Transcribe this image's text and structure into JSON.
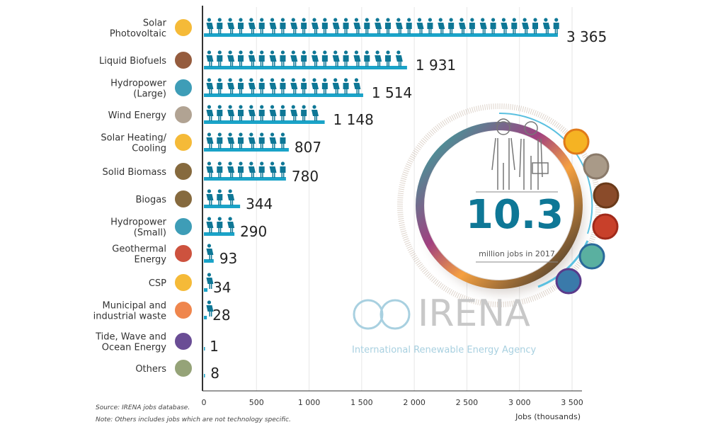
{
  "chart_data": {
    "type": "bar",
    "orientation": "horizontal",
    "xlabel": "Jobs (thousands)",
    "xlim": [
      0,
      3500
    ],
    "xticks": [
      "0",
      "500",
      "1 000",
      "1 500",
      "2 000",
      "2 500",
      "3 000",
      "3 500"
    ],
    "grid": true,
    "categories": [
      {
        "label": [
          "Solar",
          "Photovoltaic"
        ],
        "value": 3365,
        "value_label": "3 365",
        "icon": "sun-icon",
        "color": "#f5b323"
      },
      {
        "label": [
          "Liquid Biofuels"
        ],
        "value": 1931,
        "value_label": "1 931",
        "icon": "leaf-icon",
        "color": "#8a4b2a"
      },
      {
        "label": [
          "Hydropower",
          "(Large)"
        ],
        "value": 1514,
        "value_label": "1 514",
        "icon": "water-drop-icon",
        "color": "#2a93b0"
      },
      {
        "label": [
          "Wind Energy"
        ],
        "value": 1148,
        "value_label": "1 148",
        "icon": "wind-icon",
        "color": "#a99a88"
      },
      {
        "label": [
          "Solar Heating/",
          "Cooling"
        ],
        "value": 807,
        "value_label": "807",
        "icon": "sun-icon",
        "color": "#f5b323"
      },
      {
        "label": [
          "Solid Biomass"
        ],
        "value": 780,
        "value_label": "780",
        "icon": "leaf-icon",
        "color": "#7a5a2a"
      },
      {
        "label": [
          "Biogas"
        ],
        "value": 344,
        "value_label": "344",
        "icon": "leaf-icon",
        "color": "#7a5a2a"
      },
      {
        "label": [
          "Hydropower",
          "(Small)"
        ],
        "value": 290,
        "value_label": "290",
        "icon": "water-drop-icon",
        "color": "#2a93b0"
      },
      {
        "label": [
          "Geothermal",
          "Energy"
        ],
        "value": 93,
        "value_label": "93",
        "icon": "volcano-icon",
        "color": "#c8402a"
      },
      {
        "label": [
          "CSP"
        ],
        "value": 34,
        "value_label": "34",
        "icon": "sun-icon",
        "color": "#f5b323"
      },
      {
        "label": [
          "Municipal and",
          "industrial waste"
        ],
        "value": 28,
        "value_label": "28",
        "icon": "waste-icon",
        "color": "#ee7a3a"
      },
      {
        "label": [
          "Tide, Wave and",
          "Ocean Energy"
        ],
        "value": 1,
        "value_label": "1",
        "icon": "wave-icon",
        "color": "#5a3a8a"
      },
      {
        "label": [
          "Others"
        ],
        "value": 8,
        "value_label": "8",
        "icon": "plus-icon",
        "color": "#8a9a6a"
      }
    ],
    "colors": {
      "bar": "#1aa3c8",
      "people": "#0e7796",
      "total": "#0e7796"
    }
  },
  "highlight": {
    "total": "10.3",
    "caption": "million jobs in 2017"
  },
  "logo": {
    "name": "IRENA",
    "subtitle": "International Renewable Energy Agency"
  },
  "notes": {
    "source": "Source: IRENA jobs database.",
    "note": "Note: Others includes jobs which are not technology specific."
  }
}
